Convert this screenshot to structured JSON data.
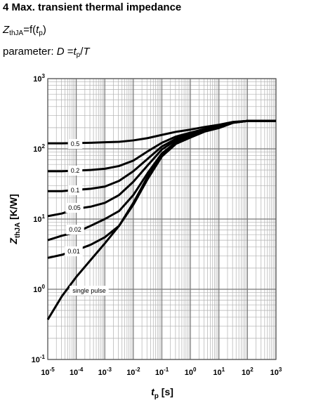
{
  "header": {
    "title": "4 Max. transient thermal impedance",
    "formula": [
      "Z",
      "thJA",
      "=f(",
      "t",
      "p",
      ")"
    ],
    "parameter": [
      "parameter: ",
      "D",
      " =",
      "t",
      "p",
      "/",
      "T"
    ]
  },
  "chart_data": {
    "type": "line",
    "log_x": true,
    "log_y": true,
    "grid": true,
    "minor_grid": true,
    "color": "#000000",
    "xlabel": {
      "main": "t",
      "sub": "p",
      "unit": " [s]"
    },
    "ylabel": {
      "main": "Z",
      "sub": "thJA",
      "unit": " [K/W]"
    },
    "xlim": [
      1e-05,
      1000
    ],
    "ylim": [
      0.1,
      1000
    ],
    "xticks": [
      {
        "value": 1e-05,
        "label": "10",
        "exponent": "-5"
      },
      {
        "value": 0.0001,
        "label": "10",
        "exponent": "-4"
      },
      {
        "value": 0.001,
        "label": "10",
        "exponent": "-3"
      },
      {
        "value": 0.01,
        "label": "10",
        "exponent": "-2"
      },
      {
        "value": 0.1,
        "label": "10",
        "exponent": "-1"
      },
      {
        "value": 1,
        "label": "10",
        "exponent": "0"
      },
      {
        "value": 10,
        "label": "10",
        "exponent": "1"
      },
      {
        "value": 100,
        "label": "10",
        "exponent": "2"
      },
      {
        "value": 1000,
        "label": "10",
        "exponent": "3"
      }
    ],
    "yticks": [
      {
        "value": 0.1,
        "label": "10",
        "exponent": "-1"
      },
      {
        "value": 1,
        "label": "10",
        "exponent": "0"
      },
      {
        "value": 10,
        "label": "10",
        "exponent": "1"
      },
      {
        "value": 100,
        "label": "10",
        "exponent": "2"
      },
      {
        "value": 1000,
        "label": "10",
        "exponent": "3"
      }
    ],
    "x": [
      1e-05,
      3.16e-05,
      0.0001,
      0.000316,
      0.001,
      0.00316,
      0.01,
      0.0316,
      0.1,
      0.316,
      1,
      3.16,
      10,
      31.6,
      100,
      1000
    ],
    "series": [
      {
        "name": "0.5",
        "values": [
          120,
          120,
          121,
          122,
          124,
          126,
          132,
          142,
          158,
          175,
          188,
          205,
          220,
          242,
          250,
          250
        ]
      },
      {
        "name": "0.2",
        "values": [
          48,
          48,
          49,
          50,
          52,
          57,
          68,
          92,
          122,
          150,
          170,
          192,
          212,
          240,
          250,
          250
        ]
      },
      {
        "name": "0.1",
        "values": [
          25,
          25,
          26,
          27,
          29,
          35,
          48,
          72,
          108,
          140,
          162,
          187,
          207,
          238,
          250,
          250
        ]
      },
      {
        "name": "0.05",
        "values": [
          11,
          12,
          14,
          15,
          17,
          22,
          34,
          58,
          98,
          133,
          156,
          183,
          203,
          237,
          250,
          250
        ]
      },
      {
        "name": "0.02",
        "values": [
          5,
          5.8,
          6.5,
          8,
          10,
          13,
          22,
          45,
          86,
          125,
          150,
          180,
          200,
          236,
          250,
          250
        ]
      },
      {
        "name": "0.01",
        "values": [
          2.8,
          3.1,
          3.6,
          4.3,
          5.5,
          8,
          17,
          40,
          80,
          120,
          148,
          178,
          199,
          236,
          250,
          250
        ]
      },
      {
        "name": "single pulse",
        "values": [
          0.37,
          0.8,
          1.5,
          2.6,
          4.5,
          8,
          16,
          37,
          78,
          118,
          145,
          176,
          198,
          235,
          250,
          250
        ]
      }
    ]
  }
}
